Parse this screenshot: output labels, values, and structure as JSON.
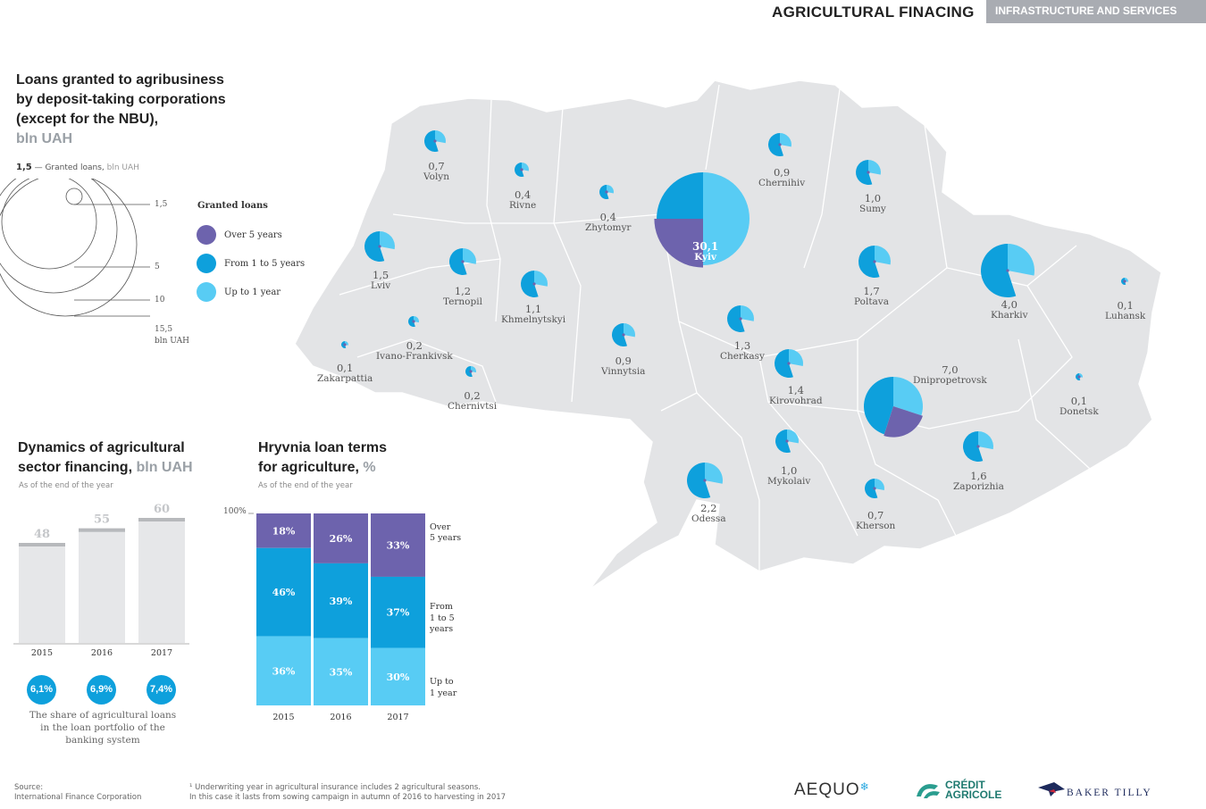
{
  "header": {
    "title": "AGRICULTURAL FINACING",
    "section": "INFRASTRUCTURE AND SERVICES"
  },
  "map_block": {
    "title_lines": [
      "Loans granted to agribusiness",
      "by deposit-taking corporations",
      "(except for the NBU),"
    ],
    "title_unit": "bln UAH",
    "scale_value": "1,5",
    "scale_caption": "— Granted loans,",
    "scale_unit": "bln UAH",
    "scale_labels": [
      "1,5",
      "5",
      "10",
      "15,5"
    ],
    "scale_unit_label": "bln UAH"
  },
  "legend": {
    "title": "Granted loans",
    "items": [
      {
        "label": "Over 5 years",
        "color": "#6d63ad"
      },
      {
        "label": "From 1 to 5 years",
        "color": "#0ea0dc"
      },
      {
        "label": "Up to 1 year",
        "color": "#58ccf4"
      }
    ]
  },
  "regions": [
    {
      "name": "Volyn",
      "value": "0,7"
    },
    {
      "name": "Rivne",
      "value": "0,4"
    },
    {
      "name": "Zhytomyr",
      "value": "0,4"
    },
    {
      "name": "Chernihiv",
      "value": "0,9"
    },
    {
      "name": "Sumy",
      "value": "1,0"
    },
    {
      "name": "Lviv",
      "value": "1,5"
    },
    {
      "name": "Ternopil",
      "value": "1,2"
    },
    {
      "name": "Khmelnytskyi",
      "value": "1,1"
    },
    {
      "name": "Kyiv",
      "value": "30,1"
    },
    {
      "name": "Poltava",
      "value": "1,7"
    },
    {
      "name": "Kharkiv",
      "value": "4,0"
    },
    {
      "name": "Luhansk",
      "value": "0,1"
    },
    {
      "name": "Ivano-Frankivsk",
      "value": "0,2"
    },
    {
      "name": "Zakarpattia",
      "value": "0,1"
    },
    {
      "name": "Chernivtsi",
      "value": "0,2"
    },
    {
      "name": "Vinnytsia",
      "value": "0,9"
    },
    {
      "name": "Cherkasy",
      "value": "1,3"
    },
    {
      "name": "Kirovohrad",
      "value": "1,4"
    },
    {
      "name": "Dnipropetrovsk",
      "value": "7,0"
    },
    {
      "name": "Donetsk",
      "value": "0,1"
    },
    {
      "name": "Mykolaiv",
      "value": "1,0"
    },
    {
      "name": "Zaporizhia",
      "value": "1,6"
    },
    {
      "name": "Odessa",
      "value": "2,2"
    },
    {
      "name": "Kherson",
      "value": "0,7"
    }
  ],
  "dynamics": {
    "title": "Dynamics of agricultural",
    "title2": "sector financing,",
    "unit": "bln UAH",
    "subtitle": "As of the end of the year",
    "share_caption": [
      "The share of agricultural loans",
      "in the loan portfolio of the",
      "banking system"
    ],
    "shares": [
      "6,1%",
      "6,9%",
      "7,4%"
    ]
  },
  "terms": {
    "title": "Hryvnia loan terms",
    "title2": "for agriculture,",
    "unit": "%",
    "subtitle": "As of the end of the year",
    "y_label": "100%",
    "labels": [
      [
        "Over",
        "5 years"
      ],
      [
        "From",
        "1 to 5",
        "years"
      ],
      [
        "Up to",
        "1 year"
      ]
    ]
  },
  "chart_data": [
    {
      "type": "bar",
      "title": "Dynamics of agricultural sector financing, bln UAH",
      "categories": [
        "2015",
        "2016",
        "2017"
      ],
      "values": [
        48,
        55,
        60
      ],
      "ylim": [
        0,
        60
      ]
    },
    {
      "type": "bar",
      "stacked": true,
      "title": "Hryvnia loan terms for agriculture, %",
      "categories": [
        "2015",
        "2016",
        "2017"
      ],
      "series": [
        {
          "name": "Over 5 years",
          "values": [
            18,
            26,
            33
          ],
          "color": "#6d63ad"
        },
        {
          "name": "From 1 to 5 years",
          "values": [
            46,
            39,
            37
          ],
          "color": "#0ea0dc"
        },
        {
          "name": "Up to 1 year",
          "values": [
            36,
            35,
            30
          ],
          "color": "#58ccf4"
        }
      ],
      "ylim": [
        0,
        100
      ]
    }
  ],
  "footer": {
    "source_label": "Source:",
    "source": "International Finance Corporation",
    "footnote1": "¹ Underwriting year in agricultural insurance includes 2 agricultural seasons.",
    "footnote2": "In this case it lasts from sowing campaign in autumn of 2016 to harvesting in 2017",
    "logos": [
      "AEQUO",
      "CRÉDIT",
      "AGRICOLE",
      "BAKER TILLY"
    ]
  }
}
